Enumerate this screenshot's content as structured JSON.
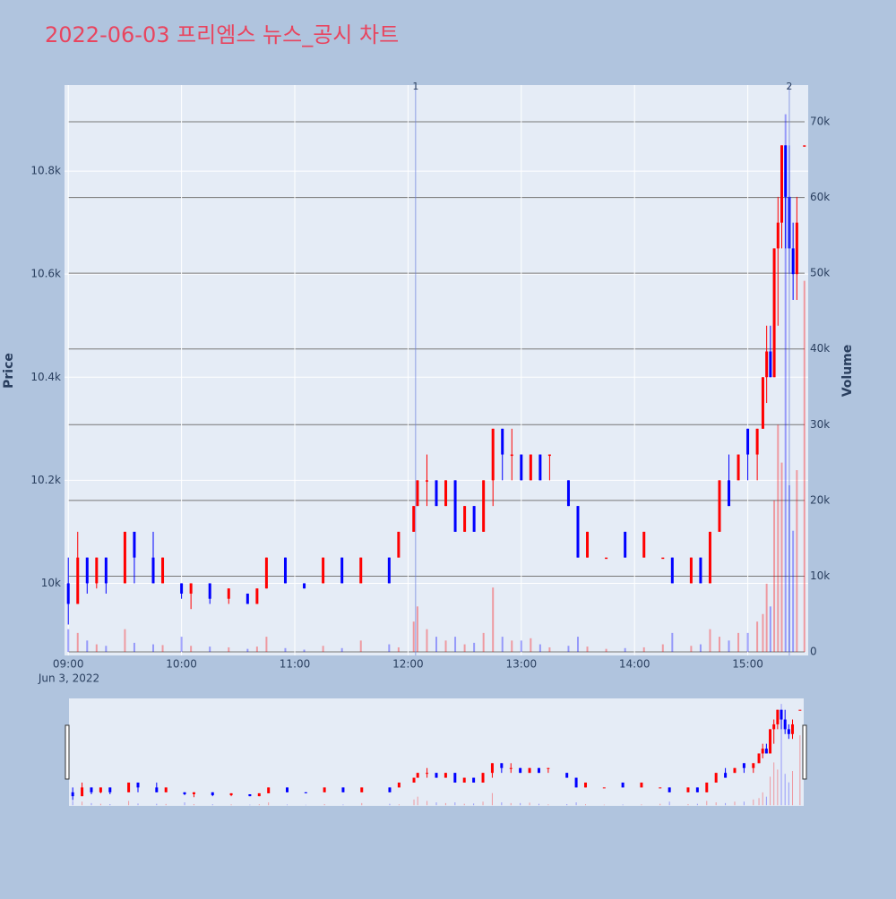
{
  "chart_data": {
    "type": "candlestick",
    "title": "2022-06-03 프리엠스 뉴스_공시 차트",
    "ylabel": "Price",
    "y2label": "Volume",
    "increasing_color": "#ff0000",
    "decreasing_color": "#0000ff",
    "x": [
      "09:00",
      "09:05",
      "09:10",
      "09:15",
      "09:20",
      "09:30",
      "09:35",
      "09:45",
      "09:50",
      "10:00",
      "10:05",
      "10:15",
      "10:25",
      "10:35",
      "10:40",
      "10:45",
      "10:55",
      "11:05",
      "11:15",
      "11:25",
      "11:35",
      "11:50",
      "11:55",
      "12:03",
      "12:05",
      "12:10",
      "12:15",
      "12:20",
      "12:25",
      "12:30",
      "12:35",
      "12:40",
      "12:45",
      "12:50",
      "12:55",
      "13:00",
      "13:05",
      "13:10",
      "13:15",
      "13:25",
      "13:30",
      "13:35",
      "13:45",
      "13:55",
      "14:05",
      "14:15",
      "14:20",
      "14:30",
      "14:35",
      "14:40",
      "14:45",
      "14:50",
      "14:55",
      "15:00",
      "15:05",
      "15:08",
      "15:10",
      "15:12",
      "15:14",
      "15:16",
      "15:18",
      "15:20",
      "15:22",
      "15:24",
      "15:26",
      "15:30"
    ],
    "open": [
      10000,
      9960,
      10050,
      10000,
      10050,
      10000,
      10100,
      10050,
      10000,
      10000,
      9980,
      10000,
      9970,
      9980,
      9960,
      9990,
      10050,
      10000,
      10000,
      10050,
      10000,
      10050,
      10050,
      10100,
      10150,
      10200,
      10200,
      10150,
      10200,
      10100,
      10150,
      10100,
      10200,
      10300,
      10250,
      10250,
      10200,
      10250,
      10250,
      10200,
      10150,
      10050,
      10050,
      10100,
      10050,
      10050,
      10050,
      10000,
      10050,
      10000,
      10100,
      10200,
      10200,
      10300,
      10250,
      10300,
      10400,
      10450,
      10400,
      10650,
      10700,
      10850,
      10750,
      10650,
      10600,
      10850
    ],
    "high": [
      10050,
      10100,
      10050,
      10050,
      10050,
      10100,
      10100,
      10100,
      10050,
      10000,
      10000,
      10000,
      9990,
      9980,
      9990,
      10050,
      10050,
      10000,
      10050,
      10050,
      10050,
      10050,
      10100,
      10150,
      10200,
      10250,
      10200,
      10200,
      10200,
      10150,
      10150,
      10200,
      10300,
      10300,
      10300,
      10250,
      10250,
      10250,
      10250,
      10200,
      10150,
      10100,
      10050,
      10100,
      10100,
      10050,
      10050,
      10050,
      10050,
      10100,
      10200,
      10250,
      10250,
      10300,
      10300,
      10400,
      10500,
      10500,
      10650,
      10750,
      10850,
      10850,
      10850,
      10700,
      10750,
      10850
    ],
    "low": [
      9920,
      9960,
      9980,
      9990,
      9980,
      10000,
      10000,
      10000,
      10000,
      9970,
      9950,
      9960,
      9960,
      9960,
      9960,
      9990,
      10000,
      9990,
      10000,
      10000,
      10000,
      10000,
      10050,
      10100,
      10150,
      10150,
      10150,
      10150,
      10100,
      10100,
      10100,
      10100,
      10150,
      10200,
      10200,
      10200,
      10200,
      10200,
      10200,
      10150,
      10050,
      10050,
      10050,
      10050,
      10050,
      10050,
      10000,
      10000,
      10000,
      10000,
      10100,
      10150,
      10200,
      10200,
      10200,
      10300,
      10350,
      10400,
      10400,
      10500,
      10650,
      10650,
      10600,
      10550,
      10550,
      10850
    ],
    "close": [
      9960,
      10050,
      10000,
      10050,
      10000,
      10100,
      10050,
      10000,
      10050,
      9980,
      10000,
      9970,
      9990,
      9960,
      9990,
      10050,
      10000,
      9990,
      10050,
      10000,
      10050,
      10000,
      10100,
      10150,
      10200,
      10200,
      10150,
      10200,
      10100,
      10150,
      10100,
      10200,
      10300,
      10250,
      10250,
      10200,
      10250,
      10200,
      10250,
      10150,
      10050,
      10100,
      10050,
      10050,
      10100,
      10050,
      10000,
      10050,
      10000,
      10100,
      10200,
      10150,
      10250,
      10250,
      10300,
      10400,
      10450,
      10400,
      10650,
      10700,
      10850,
      10750,
      10650,
      10600,
      10700,
      10850
    ],
    "volume": [
      3000,
      2500,
      1500,
      1000,
      800,
      3000,
      1200,
      1000,
      900,
      2000,
      800,
      700,
      600,
      400,
      700,
      2000,
      500,
      300,
      800,
      500,
      1500,
      1000,
      600,
      4000,
      6000,
      3000,
      2000,
      1500,
      2000,
      1000,
      1200,
      2500,
      8500,
      2000,
      1500,
      1500,
      1800,
      1000,
      600,
      800,
      2000,
      700,
      400,
      500,
      600,
      1000,
      2500,
      800,
      1000,
      3000,
      2000,
      1500,
      2500,
      2500,
      4000,
      5000,
      9000,
      6000,
      20000,
      30000,
      25000,
      71000,
      22000,
      16000,
      24000,
      49000
    ],
    "ylim": [
      9860,
      10967
    ],
    "yticks": [
      {
        "value": 10000,
        "label": "10k"
      },
      {
        "value": 10200,
        "label": "10.2k"
      },
      {
        "value": 10400,
        "label": "10.4k"
      },
      {
        "value": 10600,
        "label": "10.6k"
      },
      {
        "value": 10800,
        "label": "10.8k"
      }
    ],
    "y2lim": [
      -470,
      74850
    ],
    "y2ticks": [
      0,
      {
        "value": 10000,
        "label": "10k"
      },
      {
        "value": 20000,
        "label": "20k"
      },
      {
        "value": 30000,
        "label": "30k"
      },
      {
        "value": 40000,
        "label": "40k"
      },
      {
        "value": 50000,
        "label": "50k"
      },
      {
        "value": 60000,
        "label": "60k"
      },
      {
        "value": 70000,
        "label": "70k"
      }
    ],
    "xlim": [
      "08:58",
      "15:32"
    ],
    "xticks": [
      "09:00",
      "10:00",
      "11:00",
      "12:00",
      "13:00",
      "14:00",
      "15:00"
    ],
    "x_date_label": "Jun 3, 2022",
    "events": [
      {
        "x": "12:04",
        "label": "1"
      },
      {
        "x": "15:22",
        "label": "2"
      }
    ]
  }
}
